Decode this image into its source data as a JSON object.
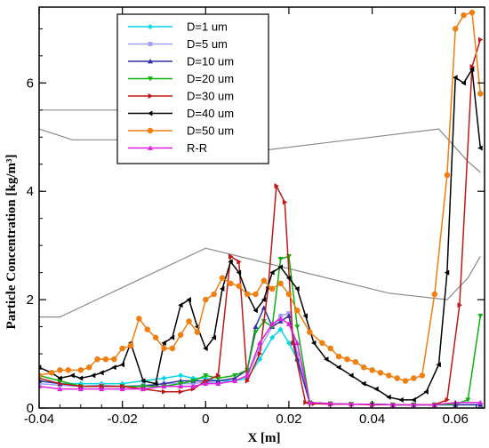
{
  "chart_data": {
    "type": "line",
    "xlabel": "X [m]",
    "ylabel": "Particle Concentration [kg/m³]",
    "xlim": [
      -0.04,
      0.067
    ],
    "ylim": [
      0,
      7.4
    ],
    "xticks": [
      -0.04,
      -0.02,
      0,
      0.02,
      0.04,
      0.06
    ],
    "xtick_labels": [
      "-0.04",
      "-0.02",
      "0",
      "0.02",
      "0.04",
      "0.06"
    ],
    "yticks": [
      0,
      2,
      4,
      6
    ],
    "ytick_labels": [
      "0",
      "2",
      "4",
      "6"
    ],
    "grid": false,
    "legend_position": "top-left",
    "series": [
      {
        "name": "D=1 um",
        "color": "#00d8e8",
        "marker": "diamond",
        "x": [
          -0.04,
          -0.035,
          -0.03,
          -0.025,
          -0.02,
          -0.015,
          -0.01,
          -0.006,
          -0.003,
          0,
          0.003,
          0.007,
          0.01,
          0.013,
          0.016,
          0.018,
          0.02,
          0.022,
          0.025,
          0.03,
          0.035,
          0.04,
          0.045,
          0.05,
          0.055,
          0.06,
          0.066
        ],
        "y": [
          0.5,
          0.45,
          0.45,
          0.45,
          0.45,
          0.5,
          0.55,
          0.6,
          0.55,
          0.55,
          0.5,
          0.5,
          0.55,
          0.9,
          1.3,
          1.45,
          1.2,
          0.9,
          0.1,
          0.08,
          0.07,
          0.07,
          0.06,
          0.06,
          0.06,
          0.06,
          0.06
        ]
      },
      {
        "name": "D=5 um",
        "color": "#a0a0ff",
        "marker": "square",
        "x": [
          -0.04,
          -0.035,
          -0.03,
          -0.025,
          -0.02,
          -0.015,
          -0.01,
          -0.006,
          -0.003,
          0,
          0.003,
          0.007,
          0.01,
          0.013,
          0.016,
          0.018,
          0.02,
          0.022,
          0.025,
          0.03,
          0.035,
          0.04,
          0.045,
          0.05,
          0.055,
          0.06,
          0.066
        ],
        "y": [
          0.45,
          0.42,
          0.4,
          0.42,
          0.4,
          0.42,
          0.45,
          0.45,
          0.45,
          0.48,
          0.45,
          0.5,
          0.6,
          1.1,
          1.5,
          1.7,
          1.75,
          1.0,
          0.1,
          0.08,
          0.07,
          0.07,
          0.06,
          0.06,
          0.06,
          0.06,
          0.06
        ]
      },
      {
        "name": "D=10 um",
        "color": "#3030a0",
        "marker": "triangle",
        "x": [
          -0.04,
          -0.035,
          -0.03,
          -0.025,
          -0.02,
          -0.015,
          -0.01,
          -0.006,
          -0.003,
          0,
          0.003,
          0.007,
          0.01,
          0.012,
          0.014,
          0.016,
          0.018,
          0.02,
          0.022,
          0.025,
          0.03,
          0.035,
          0.04,
          0.045,
          0.05,
          0.055,
          0.06,
          0.066
        ],
        "y": [
          0.5,
          0.45,
          0.4,
          0.4,
          0.4,
          0.4,
          0.45,
          0.5,
          0.5,
          0.5,
          0.5,
          0.55,
          0.7,
          1.5,
          1.85,
          1.5,
          1.6,
          1.7,
          0.9,
          0.1,
          0.08,
          0.07,
          0.07,
          0.06,
          0.06,
          0.06,
          0.06,
          0.06
        ]
      },
      {
        "name": "D=20 um",
        "color": "#10b010",
        "marker": "triangle-down",
        "x": [
          -0.04,
          -0.035,
          -0.03,
          -0.025,
          -0.02,
          -0.015,
          -0.01,
          -0.006,
          -0.003,
          0,
          0.003,
          0.007,
          0.01,
          0.012,
          0.014,
          0.016,
          0.018,
          0.02,
          0.022,
          0.025,
          0.03,
          0.035,
          0.04,
          0.045,
          0.05,
          0.055,
          0.06,
          0.063,
          0.066
        ],
        "y": [
          0.6,
          0.5,
          0.4,
          0.4,
          0.4,
          0.4,
          0.4,
          0.45,
          0.5,
          0.6,
          0.55,
          0.6,
          0.7,
          1.4,
          1.6,
          1.5,
          2.75,
          2.8,
          1.5,
          0.1,
          0.08,
          0.07,
          0.07,
          0.06,
          0.06,
          0.06,
          0.07,
          0.15,
          1.7
        ]
      },
      {
        "name": "D=30 um",
        "color": "#c01818",
        "marker": "triangle-right",
        "x": [
          -0.04,
          -0.035,
          -0.03,
          -0.025,
          -0.02,
          -0.015,
          -0.01,
          -0.006,
          -0.003,
          0,
          0.003,
          0.006,
          0.008,
          0.01,
          0.013,
          0.015,
          0.017,
          0.019,
          0.021,
          0.024,
          0.026,
          0.03,
          0.035,
          0.04,
          0.045,
          0.05,
          0.055,
          0.058,
          0.061,
          0.064,
          0.066
        ],
        "y": [
          0.55,
          0.45,
          0.4,
          0.4,
          0.4,
          0.35,
          0.3,
          0.3,
          0.35,
          0.5,
          0.6,
          2.8,
          2.7,
          0.5,
          1.0,
          2.2,
          4.1,
          3.8,
          1.2,
          0.1,
          0.08,
          0.07,
          0.07,
          0.06,
          0.06,
          0.06,
          0.06,
          0.15,
          1.9,
          6.3,
          6.8
        ]
      },
      {
        "name": "D=40 um",
        "color": "#000000",
        "marker": "triangle-left",
        "x": [
          -0.04,
          -0.037,
          -0.035,
          -0.032,
          -0.03,
          -0.027,
          -0.025,
          -0.022,
          -0.02,
          -0.018,
          -0.015,
          -0.012,
          -0.01,
          -0.008,
          -0.006,
          -0.004,
          -0.002,
          0,
          0.002,
          0.004,
          0.006,
          0.008,
          0.01,
          0.012,
          0.014,
          0.016,
          0.018,
          0.02,
          0.022,
          0.024,
          0.026,
          0.029,
          0.032,
          0.035,
          0.038,
          0.041,
          0.044,
          0.047,
          0.05,
          0.053,
          0.056,
          0.058,
          0.06,
          0.062,
          0.064,
          0.066
        ],
        "y": [
          0.75,
          0.65,
          0.55,
          0.6,
          0.55,
          0.6,
          0.65,
          0.75,
          0.8,
          1.2,
          0.5,
          0.45,
          1.2,
          1.3,
          1.9,
          2.0,
          1.5,
          1.1,
          1.3,
          2.2,
          2.7,
          2.5,
          2.1,
          1.8,
          2.0,
          2.5,
          2.6,
          2.4,
          2.2,
          1.7,
          1.2,
          0.9,
          0.75,
          0.6,
          0.45,
          0.35,
          0.2,
          0.15,
          0.15,
          0.3,
          0.8,
          2.5,
          6.1,
          6.0,
          6.25,
          4.8
        ]
      },
      {
        "name": "D=50 um",
        "color": "#ee7f10",
        "marker": "circle",
        "x": [
          -0.04,
          -0.037,
          -0.035,
          -0.033,
          -0.03,
          -0.028,
          -0.026,
          -0.024,
          -0.022,
          -0.02,
          -0.018,
          -0.016,
          -0.014,
          -0.012,
          -0.01,
          -0.008,
          -0.006,
          -0.004,
          -0.002,
          0,
          0.002,
          0.004,
          0.006,
          0.008,
          0.01,
          0.012,
          0.014,
          0.016,
          0.018,
          0.02,
          0.022,
          0.025,
          0.028,
          0.03,
          0.032,
          0.034,
          0.036,
          0.038,
          0.04,
          0.042,
          0.044,
          0.046,
          0.048,
          0.05,
          0.052,
          0.055,
          0.058,
          0.06,
          0.062,
          0.064,
          0.066
        ],
        "y": [
          0.6,
          0.65,
          0.7,
          0.7,
          0.7,
          0.75,
          0.9,
          0.9,
          0.9,
          1.1,
          1.15,
          1.65,
          1.45,
          1.3,
          1.1,
          1.1,
          1.35,
          1.6,
          1.4,
          2.0,
          2.1,
          2.4,
          2.3,
          2.25,
          2.1,
          2.1,
          2.35,
          2.2,
          2.3,
          2.1,
          1.8,
          1.4,
          1.2,
          1.1,
          0.95,
          0.9,
          0.85,
          0.75,
          0.7,
          0.65,
          0.6,
          0.55,
          0.5,
          0.55,
          0.6,
          2.1,
          4.3,
          7.0,
          7.25,
          7.3,
          5.8
        ]
      },
      {
        "name": "R-R",
        "color": "#e020e0",
        "marker": "triangle",
        "x": [
          -0.04,
          -0.035,
          -0.03,
          -0.025,
          -0.02,
          -0.015,
          -0.01,
          -0.006,
          -0.003,
          0,
          0.003,
          0.007,
          0.01,
          0.013,
          0.016,
          0.018,
          0.02,
          0.022,
          0.025,
          0.03,
          0.035,
          0.04,
          0.045,
          0.05,
          0.055,
          0.06,
          0.066
        ],
        "y": [
          0.4,
          0.35,
          0.35,
          0.35,
          0.35,
          0.35,
          0.4,
          0.4,
          0.4,
          0.45,
          0.45,
          0.5,
          0.6,
          1.2,
          1.55,
          1.65,
          1.55,
          1.2,
          0.1,
          0.08,
          0.07,
          0.07,
          0.06,
          0.06,
          0.06,
          0.1,
          0.1
        ]
      }
    ],
    "background_outline": [
      [
        [
          -0.04,
          5.5
        ],
        [
          -0.017,
          5.5
        ],
        [
          -0.002,
          5.1
        ],
        [
          -0.018,
          4.95
        ],
        [
          -0.032,
          4.95
        ],
        [
          -0.04,
          5.15
        ]
      ],
      [
        [
          -0.04,
          1.68
        ],
        [
          -0.035,
          1.68
        ],
        [
          0.0,
          2.95
        ],
        [
          0.044,
          2.12
        ],
        [
          0.058,
          2.0
        ],
        [
          0.063,
          2.4
        ],
        [
          0.066,
          2.8
        ]
      ],
      [
        [
          -0.002,
          5.1
        ],
        [
          -0.003,
          4.92
        ],
        [
          0.01,
          4.72
        ],
        [
          0.056,
          5.15
        ],
        [
          0.063,
          4.55
        ],
        [
          0.066,
          4.35
        ]
      ]
    ]
  }
}
